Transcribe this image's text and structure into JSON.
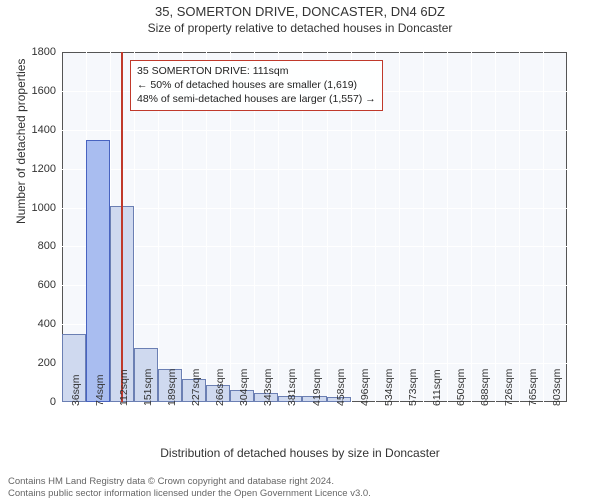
{
  "title": "35, SOMERTON DRIVE, DONCASTER, DN4 6DZ",
  "subtitle": "Size of property relative to detached houses in Doncaster",
  "ylabel": "Number of detached properties",
  "xlabel": "Distribution of detached houses by size in Doncaster",
  "chart": {
    "type": "histogram",
    "plot_bg": "#f6f8fc",
    "grid_color": "#ffffff",
    "bar_fill": "#cfd9ef",
    "bar_border": "#6b7fb3",
    "highlight_fill": "#a9bdf0",
    "highlight_border": "#4863c0",
    "marker_color": "#c0392b",
    "ylim": [
      0,
      1800
    ],
    "ytick_step": 200,
    "xticks": [
      "36sqm",
      "74sqm",
      "112sqm",
      "151sqm",
      "189sqm",
      "227sqm",
      "266sqm",
      "304sqm",
      "343sqm",
      "381sqm",
      "419sqm",
      "458sqm",
      "496sqm",
      "534sqm",
      "573sqm",
      "611sqm",
      "650sqm",
      "688sqm",
      "726sqm",
      "765sqm",
      "803sqm"
    ],
    "values": [
      350,
      1350,
      1010,
      280,
      170,
      120,
      90,
      60,
      45,
      30,
      30,
      25,
      0,
      0,
      0,
      0,
      0,
      0,
      0,
      0,
      0
    ],
    "highlight_index": 1,
    "marker_value": 111
  },
  "annotation": {
    "line1": "35 SOMERTON DRIVE: 111sqm",
    "line2": "← 50% of detached houses are smaller (1,619)",
    "line3": "48% of semi-detached houses are larger (1,557) →"
  },
  "footer": {
    "line1": "Contains HM Land Registry data © Crown copyright and database right 2024.",
    "line2": "Contains public sector information licensed under the Open Government Licence v3.0."
  }
}
